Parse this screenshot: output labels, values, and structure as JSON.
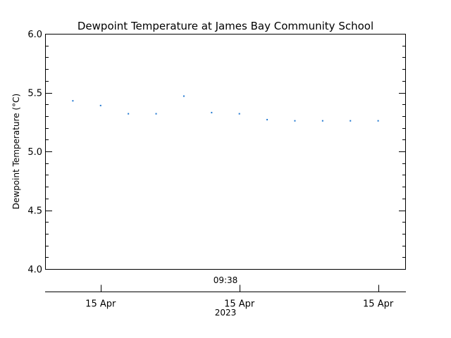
{
  "chart_data": {
    "type": "scatter",
    "title": "Dewpoint Temperature at James Bay Community School",
    "ylabel": "Dewpoint Temperature (°C)",
    "ylim": [
      4.0,
      6.0
    ],
    "yticks": [
      "4.0",
      "4.5",
      "5.0",
      "5.5",
      "6.0"
    ],
    "xlim": [
      0,
      13
    ],
    "x_time_label": "09:38",
    "x_ticks": [
      {
        "x": 2,
        "label": "15 Apr"
      },
      {
        "x": 7,
        "label": "15 Apr"
      },
      {
        "x": 12,
        "label": "15 Apr"
      }
    ],
    "x_year_label": "2023",
    "series": [
      {
        "color": "#1f77d0",
        "points": [
          {
            "x": 1,
            "y": 5.43
          },
          {
            "x": 2,
            "y": 5.39
          },
          {
            "x": 3,
            "y": 5.32
          },
          {
            "x": 4,
            "y": 5.32
          },
          {
            "x": 5,
            "y": 5.47
          },
          {
            "x": 6,
            "y": 5.33
          },
          {
            "x": 7,
            "y": 5.32
          },
          {
            "x": 8,
            "y": 5.27
          },
          {
            "x": 9,
            "y": 5.26
          },
          {
            "x": 10,
            "y": 5.26
          },
          {
            "x": 11,
            "y": 5.26
          },
          {
            "x": 12,
            "y": 5.26
          }
        ]
      }
    ],
    "grid": false,
    "legend": "none"
  }
}
